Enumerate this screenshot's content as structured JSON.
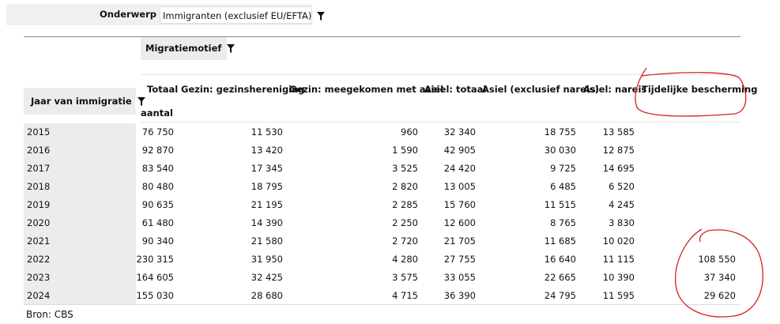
{
  "filter": {
    "label": "Onderwerp",
    "value": "Immigranten (exclusief EU/EFTA)"
  },
  "table": {
    "column_dimension": "Migratiemotief",
    "row_dimension": "Jaar van immigratie",
    "unit": "aantal",
    "columns": [
      "Totaal",
      "Gezin: gezinshereniging",
      "Gezin: meegekomen met asiel",
      "Asiel: totaal",
      "Asiel (exclusief nareis)",
      "Asiel: nareis",
      "Tijdelijke bescherming"
    ],
    "rows": [
      {
        "label": "2015",
        "cells": [
          "76 750",
          "11 530",
          "960",
          "32 340",
          "18 755",
          "13 585",
          null
        ]
      },
      {
        "label": "2016",
        "cells": [
          "92 870",
          "13 420",
          "1 590",
          "42 905",
          "30 030",
          "12 875",
          null
        ]
      },
      {
        "label": "2017",
        "cells": [
          "83 540",
          "17 345",
          "3 525",
          "24 420",
          "9 725",
          "14 695",
          null
        ]
      },
      {
        "label": "2018",
        "cells": [
          "80 480",
          "18 795",
          "2 820",
          "13 005",
          "6 485",
          "6 520",
          null
        ]
      },
      {
        "label": "2019",
        "cells": [
          "90 635",
          "21 195",
          "2 285",
          "15 760",
          "11 515",
          "4 245",
          null
        ]
      },
      {
        "label": "2020",
        "cells": [
          "61 480",
          "14 390",
          "2 250",
          "12 600",
          "8 765",
          "3 830",
          null
        ]
      },
      {
        "label": "2021",
        "cells": [
          "90 340",
          "21 580",
          "2 720",
          "21 705",
          "11 685",
          "10 020",
          null
        ]
      },
      {
        "label": "2022",
        "cells": [
          "230 315",
          "31 950",
          "4 280",
          "27 755",
          "16 640",
          "11 115",
          "108 550"
        ]
      },
      {
        "label": "2023",
        "cells": [
          "164 605",
          "32 425",
          "3 575",
          "33 055",
          "22 665",
          "10 390",
          "37 340"
        ]
      },
      {
        "label": "2024",
        "cells": [
          "155 030",
          "28 680",
          "4 715",
          "36 390",
          "24 795",
          "11 595",
          "29 620"
        ]
      }
    ]
  },
  "source": "Bron: CBS"
}
